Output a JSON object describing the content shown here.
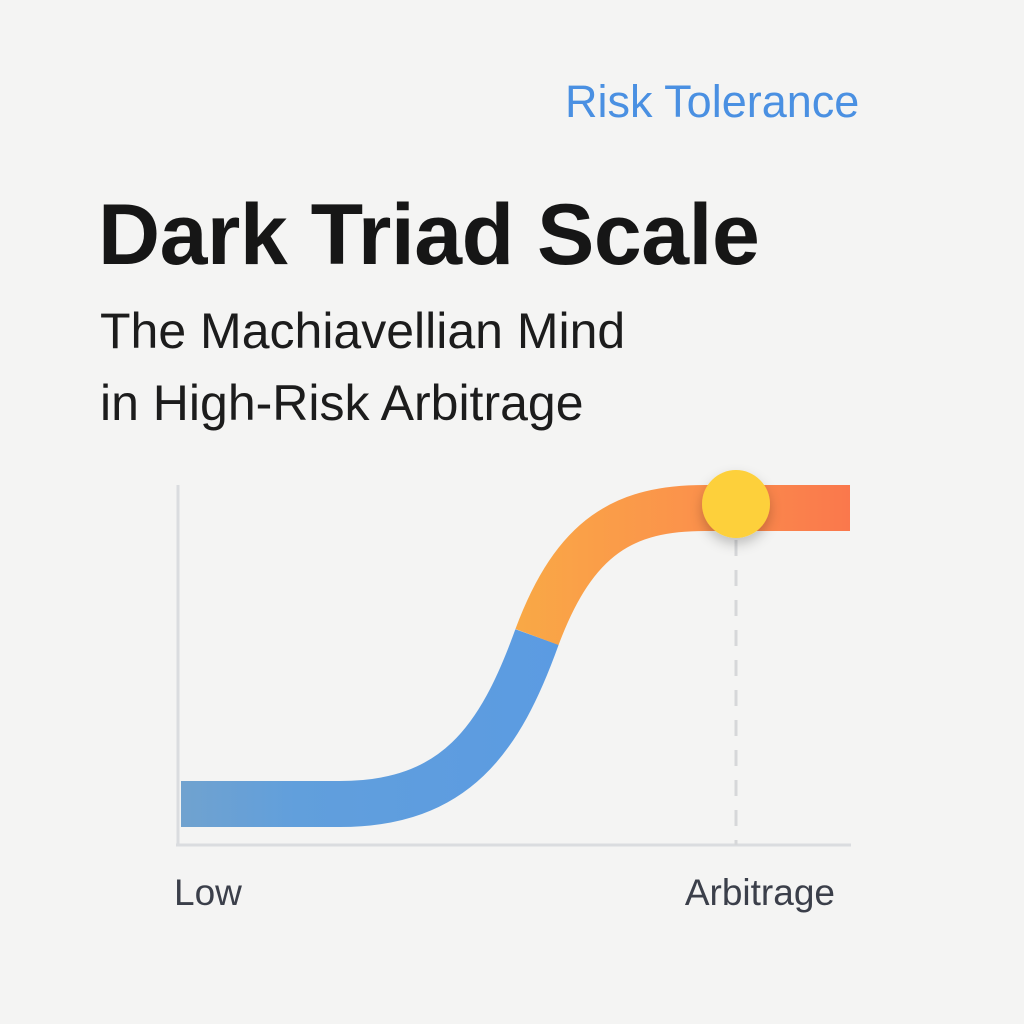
{
  "header": {
    "tag": "Risk Tolerance",
    "title": "Dark Triad Scale",
    "subtitle_line1": "The Machiavellian Mind",
    "subtitle_line2": "in High-Risk Arbitrage"
  },
  "chart_data": {
    "type": "line",
    "shape": "sigmoid",
    "x_tick_labels": [
      "Low",
      "Arbitrage"
    ],
    "y_range": [
      "low",
      "high"
    ],
    "marker": {
      "at": "Arbitrage",
      "level": "max",
      "color": "#fdd03a"
    },
    "colors": {
      "low_segment": "#5e9ce0",
      "high_segment": "#f9a548",
      "end": "#fa7a4c",
      "axis": "#dadcdf"
    },
    "grid": false
  }
}
